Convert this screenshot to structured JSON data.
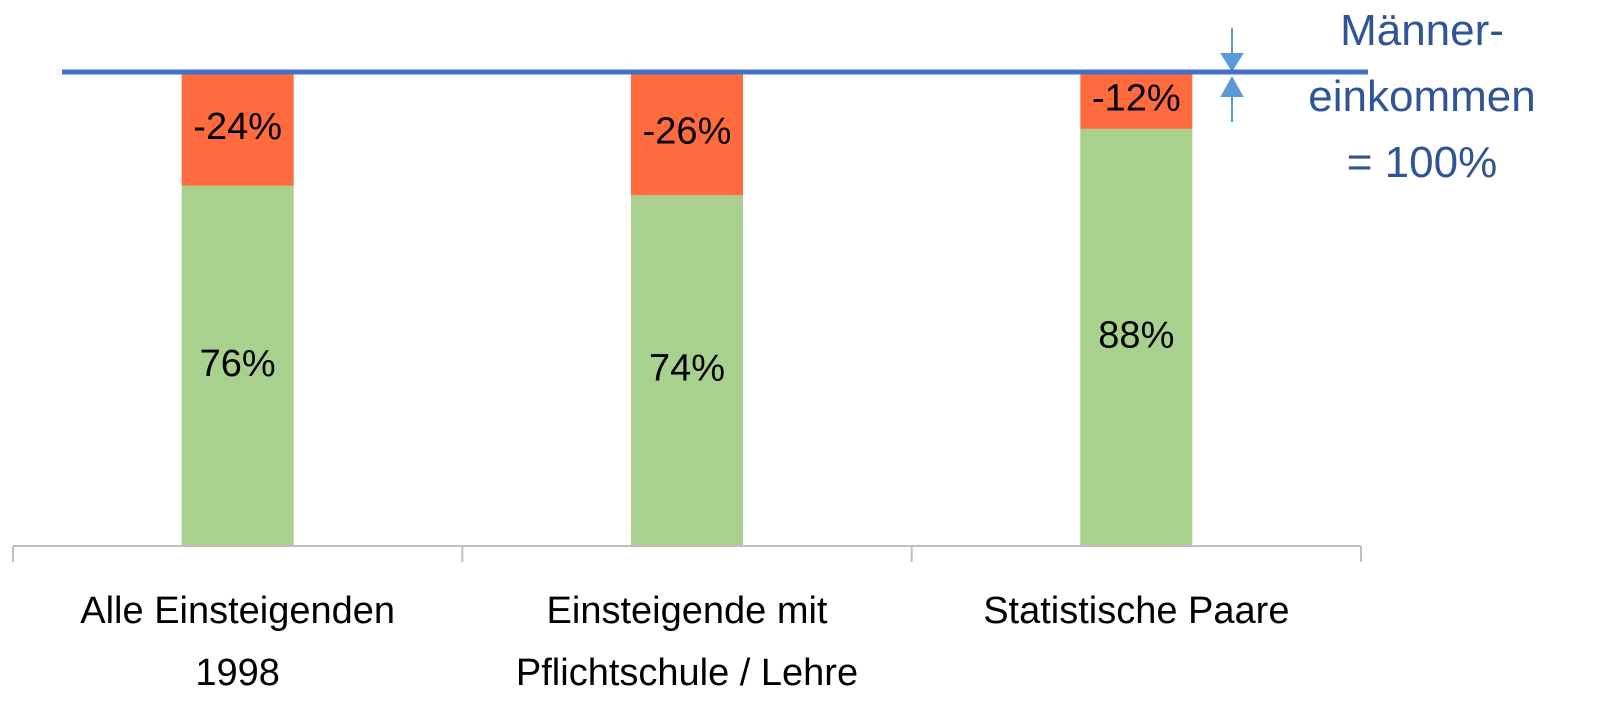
{
  "chart_data": {
    "type": "bar",
    "categories": [
      "Alle Einsteigenden\n1998",
      "Einsteigende mit\nPflichtschule / Lehre",
      "Statistische Paare"
    ],
    "series": [
      {
        "color": "#a9d18e",
        "values": [
          76,
          74,
          88
        ],
        "value_labels": [
          "76%",
          "74%",
          "88%"
        ]
      },
      {
        "color": "#ff6b3d",
        "values": [
          -24,
          -26,
          -12
        ],
        "value_labels": [
          "-24%",
          "-26%",
          "-12%"
        ]
      }
    ],
    "ylim": [
      0,
      100
    ],
    "reference_line": {
      "value": 100,
      "label": "Männer-\neinkommen\n= 100%",
      "color": "#4472c4"
    }
  }
}
